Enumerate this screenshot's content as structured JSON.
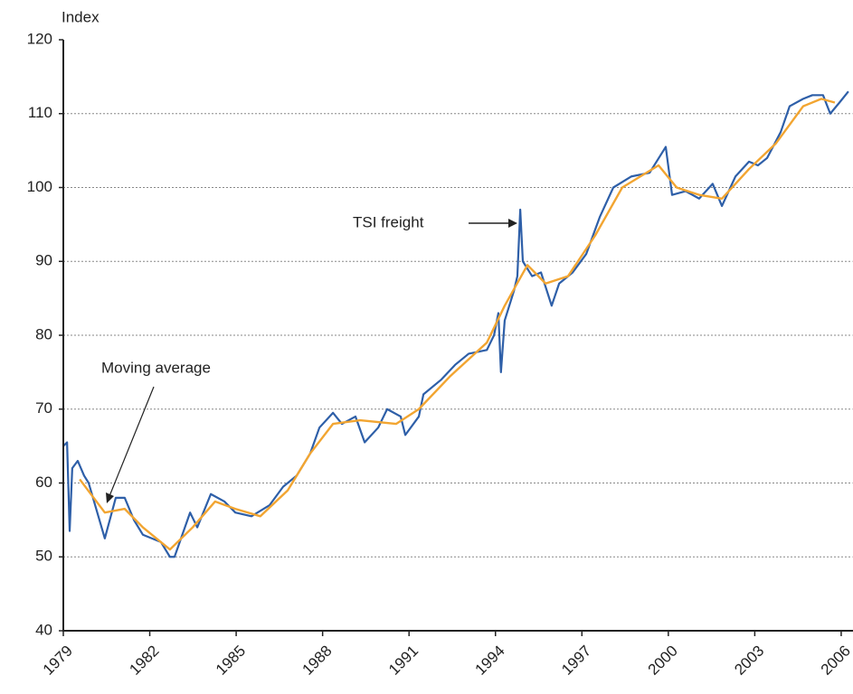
{
  "chart_data": {
    "type": "line",
    "y_label": "Index",
    "xlim": [
      1979,
      2006.3
    ],
    "ylim": [
      40,
      120
    ],
    "xticks": [
      1979,
      1982,
      1985,
      1988,
      1991,
      1994,
      1997,
      2000,
      2003,
      2006
    ],
    "yticks": [
      40,
      50,
      60,
      70,
      80,
      90,
      100,
      110,
      120
    ],
    "grid": true,
    "annotations": [
      "TSI freight",
      "Moving average"
    ],
    "series": [
      {
        "name": "TSI freight",
        "color": "#2e5fa8",
        "x": [
          1979.0,
          1979.13,
          1979.22,
          1979.31,
          1979.5,
          1979.72,
          1979.88,
          1980.44,
          1980.82,
          1981.13,
          1981.45,
          1981.76,
          1982.39,
          1982.7,
          1982.86,
          1983.4,
          1983.65,
          1984.12,
          1984.59,
          1984.97,
          1985.53,
          1986.16,
          1986.63,
          1987.1,
          1987.57,
          1987.89,
          1988.36,
          1988.67,
          1989.14,
          1989.46,
          1989.93,
          1990.24,
          1990.71,
          1990.87,
          1991.34,
          1991.5,
          1992.12,
          1992.6,
          1993.07,
          1993.7,
          1993.95,
          1994.1,
          1994.19,
          1994.32,
          1994.64,
          1994.76,
          1994.86,
          1994.95,
          1995.27,
          1995.58,
          1995.95,
          1996.21,
          1996.68,
          1997.15,
          1997.62,
          1998.09,
          1998.72,
          1999.35,
          1999.91,
          2000.13,
          2000.6,
          2001.07,
          2001.54,
          2001.86,
          2002.33,
          2002.8,
          2003.11,
          2003.43,
          2003.9,
          2004.21,
          2004.68,
          2005.0,
          2005.37,
          2005.62,
          2005.94,
          2006.25
        ],
        "values": [
          65,
          65.5,
          53.5,
          62,
          63,
          61,
          60,
          52.5,
          58,
          58,
          55,
          53,
          52,
          50,
          50,
          56,
          54,
          58.5,
          57.5,
          56,
          55.5,
          57,
          59.5,
          61,
          64,
          67.5,
          69.5,
          68,
          69,
          65.5,
          67.5,
          70,
          69,
          66.5,
          69,
          72,
          74,
          76,
          77.5,
          78,
          80,
          83,
          75,
          82,
          86,
          88,
          97,
          90,
          88,
          88.5,
          84,
          87,
          88.5,
          91,
          96,
          100,
          101.5,
          102,
          105.5,
          99,
          99.5,
          98.5,
          100.5,
          97.5,
          101.5,
          103.5,
          103,
          104,
          107.5,
          111,
          112,
          112.5,
          112.5,
          110,
          111.5,
          113
        ]
      },
      {
        "name": "Moving average",
        "color": "#f2a531",
        "x": [
          1979.57,
          1980.44,
          1981.13,
          1981.76,
          1982.7,
          1983.49,
          1984.27,
          1984.97,
          1985.84,
          1986.79,
          1987.57,
          1988.36,
          1989.3,
          1990.55,
          1991.34,
          1992.44,
          1993.7,
          1994.32,
          1995.11,
          1995.74,
          1996.52,
          1997.46,
          1998.4,
          1999.66,
          2000.29,
          2001.07,
          2001.86,
          2002.8,
          2003.74,
          2004.68,
          2005.31,
          2005.78
        ],
        "values": [
          60.5,
          56,
          56.5,
          54,
          51,
          54,
          57.5,
          56.5,
          55.5,
          59,
          64,
          68,
          68.5,
          68,
          70,
          74.5,
          79,
          84,
          89.5,
          87,
          88,
          93.5,
          100,
          103,
          100,
          99,
          98.5,
          102.5,
          106,
          111,
          112,
          111.5
        ]
      }
    ]
  }
}
